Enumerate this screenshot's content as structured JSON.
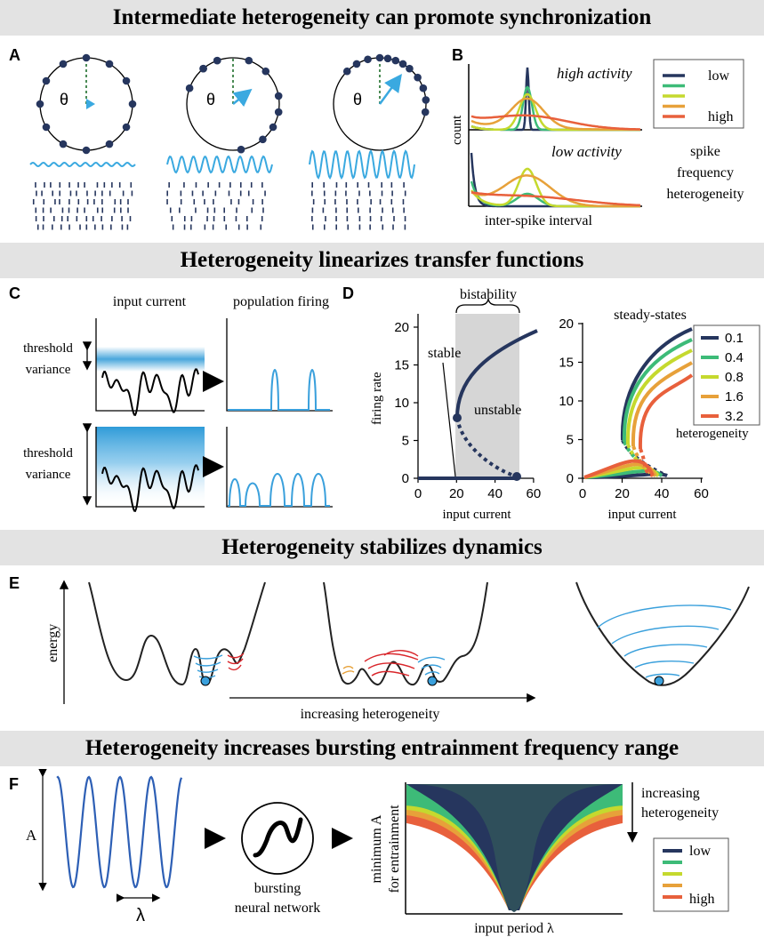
{
  "banners": {
    "sync": "Intermediate heterogeneity can promote synchronization",
    "linearize": "Heterogeneity linearizes transfer functions",
    "stabilize": "Heterogeneity stabilizes dynamics",
    "bursting": "Heterogeneity increases bursting entrainment frequency range"
  },
  "panel_labels": {
    "a": "A",
    "b": "B",
    "c": "C",
    "d": "D",
    "e": "E",
    "f": "F"
  },
  "panel_a": {
    "theta": "θ"
  },
  "panel_b": {
    "high_activity": "high activity",
    "low_activity": "low activity",
    "ylabel": "count",
    "xlabel": "inter-spike interval",
    "legend": {
      "low": "low",
      "high": "high"
    },
    "legend_title": [
      "spike",
      "frequency",
      "heterogeneity"
    ],
    "colors": [
      "#26365e",
      "#3dbb78",
      "#c5d92e",
      "#e7a13a",
      "#e8603c"
    ]
  },
  "panel_c": {
    "input_title": "input current",
    "output_title": "population firing",
    "threshold_line1": "threshold",
    "threshold_line2": "variance"
  },
  "panel_d": {
    "bistability": "bistability",
    "stable": "stable",
    "unstable": "unstable",
    "ylabel": "firing rate",
    "xlabel": "input current",
    "steady_title": "steady-states",
    "legend": [
      "0.1",
      "0.4",
      "0.8",
      "1.6",
      "3.2"
    ],
    "legend_title": "heterogeneity",
    "yticks": [
      "0",
      "5",
      "10",
      "15",
      "20"
    ],
    "xticks": [
      "0",
      "20",
      "40",
      "60"
    ]
  },
  "panel_e": {
    "ylabel": "energy",
    "arrow_label": "increasing heterogeneity"
  },
  "panel_f": {
    "amp": "A",
    "period": "λ",
    "network1": "bursting",
    "network2": "neural network",
    "ylabel1": "minimum A",
    "ylabel2": "for entrainment",
    "xlabel": "input period  λ",
    "increasing1": "increasing",
    "increasing2": "heterogeneity",
    "legend": {
      "low": "low",
      "high": "high"
    }
  }
}
